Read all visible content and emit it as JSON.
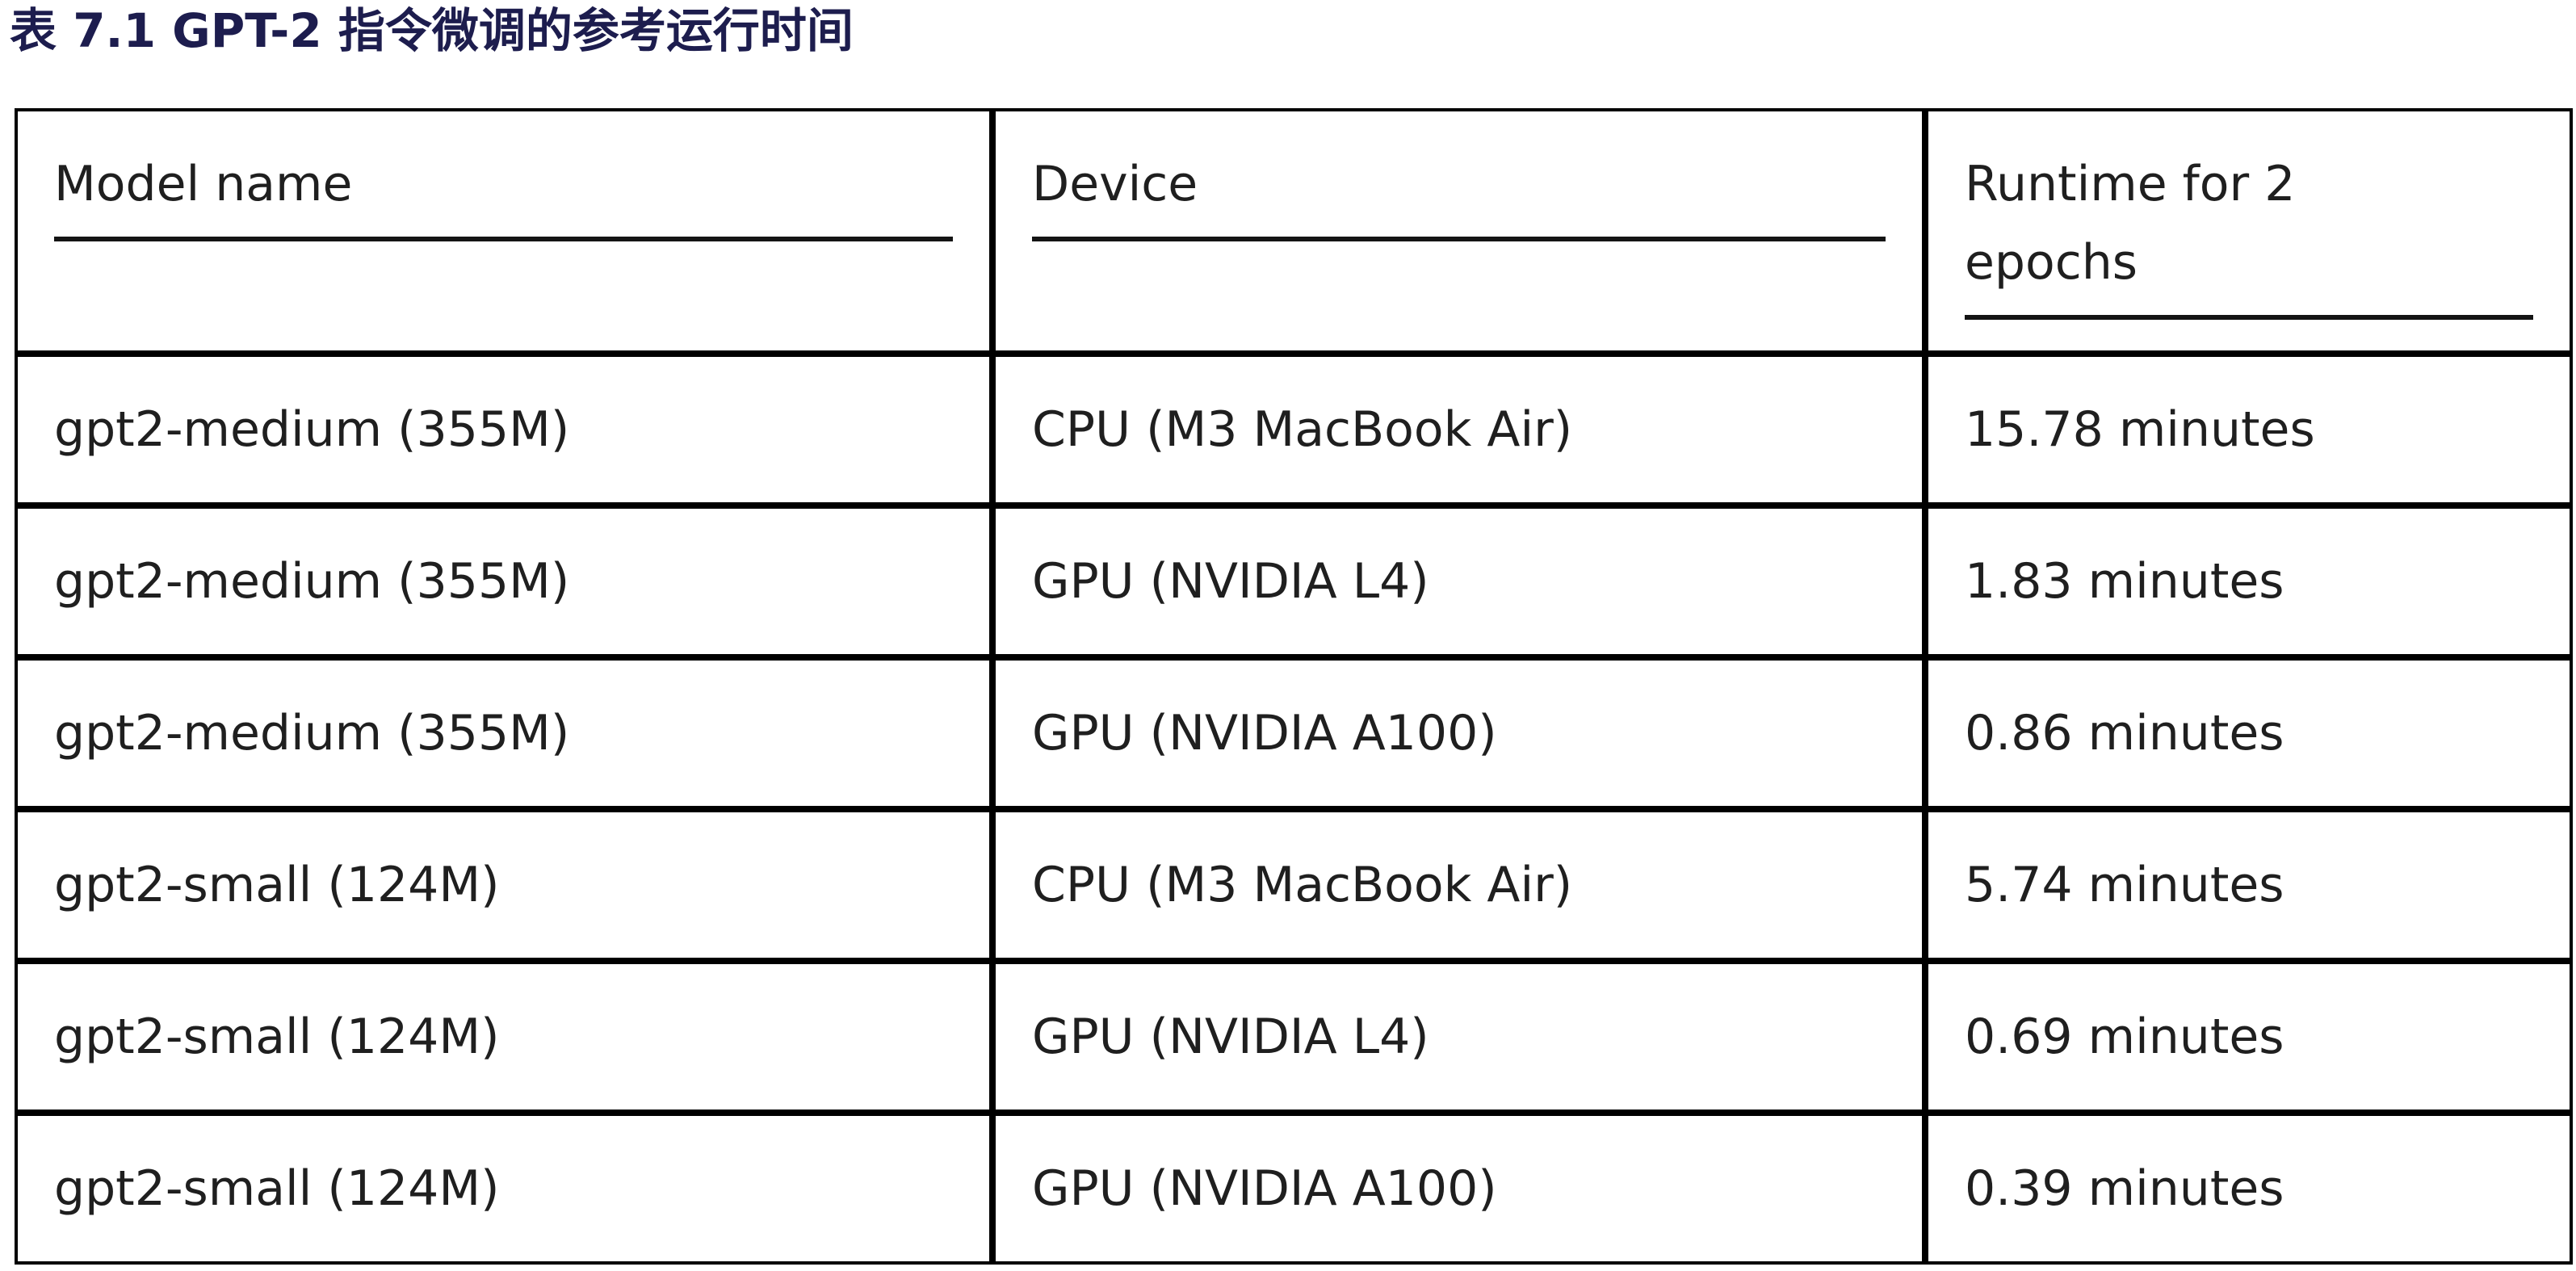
{
  "title": "表 7.1 GPT-2 指令微调的参考运行时间",
  "table": {
    "columns": [
      "Model name",
      "Device",
      "Runtime for 2 epochs"
    ],
    "rows": [
      [
        "gpt2-medium (355M)",
        "CPU (M3 MacBook Air)",
        "15.78 minutes"
      ],
      [
        "gpt2-medium (355M)",
        "GPU (NVIDIA L4)",
        "1.83 minutes"
      ],
      [
        "gpt2-medium (355M)",
        "GPU (NVIDIA A100)",
        "0.86 minutes"
      ],
      [
        "gpt2-small (124M)",
        "CPU (M3 MacBook Air)",
        "5.74 minutes"
      ],
      [
        "gpt2-small (124M)",
        "GPU (NVIDIA L4)",
        "0.69 minutes"
      ],
      [
        "gpt2-small (124M)",
        "GPU (NVIDIA A100)",
        "0.39 minutes"
      ]
    ]
  },
  "colors": {
    "title": "#1d1d4e",
    "text": "#1f1f1f",
    "border": "#000000",
    "background": "#ffffff"
  }
}
